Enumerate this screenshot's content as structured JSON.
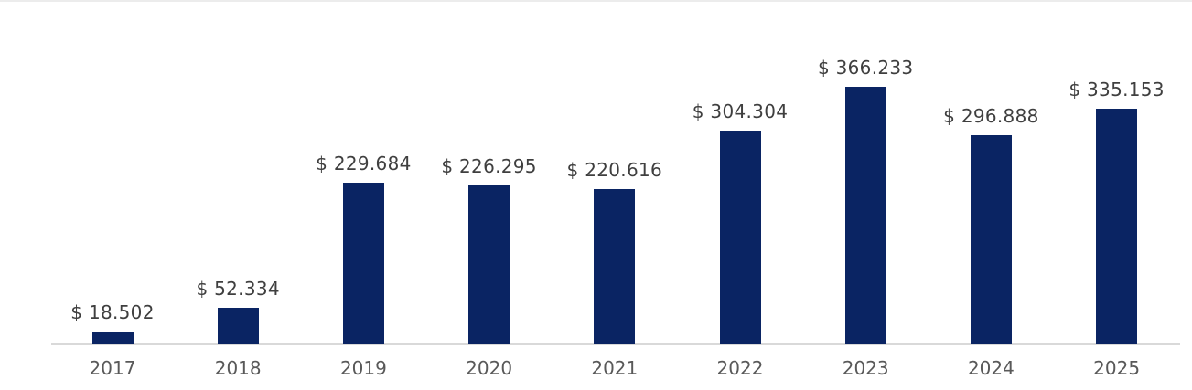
{
  "page": {
    "background": "#ffffff"
  },
  "chart_data": {
    "type": "bar",
    "title": "",
    "xlabel": "",
    "ylabel": "",
    "categories": [
      "2017",
      "2018",
      "2019",
      "2020",
      "2021",
      "2022",
      "2023",
      "2024",
      "2025"
    ],
    "values": [
      18.502,
      52.334,
      229.684,
      226.295,
      220.616,
      304.304,
      366.233,
      296.888,
      335.153
    ],
    "data_labels": [
      "$ 18.502",
      "$ 52.334",
      "$ 229.684",
      "$ 226.295",
      "$ 220.616",
      "$ 304.304",
      "$ 366.233",
      "$ 296.888",
      "$ 335.153"
    ],
    "ylim": [
      0,
      400
    ],
    "grid": false,
    "legend_position": "none",
    "colors": {
      "bar": "#0a2463",
      "axis_line": "#d9d9d9",
      "data_label": "#3f3f3f",
      "tick_label": "#595959",
      "background": "#ffffff",
      "top_divider": "#ececec"
    }
  }
}
